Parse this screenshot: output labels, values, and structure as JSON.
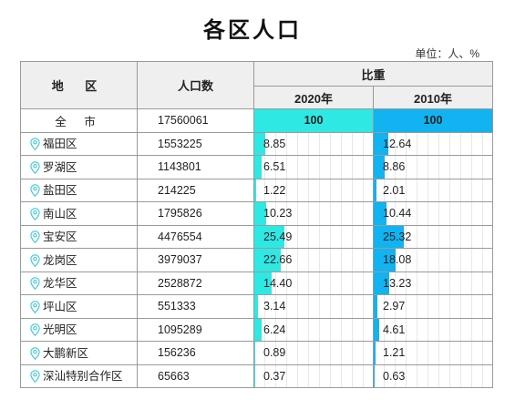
{
  "title": "各区人口",
  "unit": "单位：人、%",
  "headers": {
    "region": "地  区",
    "population": "人口数",
    "share": "比重",
    "y2020": "2020年",
    "y2010": "2010年"
  },
  "colors": {
    "y2020": "#2ee8e4",
    "y2010": "#11b3f0",
    "pin": "#38c7d8"
  },
  "icon": "location-pin-icon",
  "total": {
    "region": "全  市",
    "population": "17560061",
    "share_2020": "100",
    "share_2010": "100"
  },
  "rows": [
    {
      "region": "福田区",
      "population": "1553225",
      "share_2020": "8.85",
      "share_2010": "12.64"
    },
    {
      "region": "罗湖区",
      "population": "1143801",
      "share_2020": "6.51",
      "share_2010": "8.86"
    },
    {
      "region": "盐田区",
      "population": "214225",
      "share_2020": "1.22",
      "share_2010": "2.01"
    },
    {
      "region": "南山区",
      "population": "1795826",
      "share_2020": "10.23",
      "share_2010": "10.44"
    },
    {
      "region": "宝安区",
      "population": "4476554",
      "share_2020": "25.49",
      "share_2010": "25.32"
    },
    {
      "region": "龙岗区",
      "population": "3979037",
      "share_2020": "22.66",
      "share_2010": "18.08"
    },
    {
      "region": "龙华区",
      "population": "2528872",
      "share_2020": "14.40",
      "share_2010": "13.23"
    },
    {
      "region": "坪山区",
      "population": "551333",
      "share_2020": "3.14",
      "share_2010": "2.97"
    },
    {
      "region": "光明区",
      "population": "1095289",
      "share_2020": "6.24",
      "share_2010": "4.61"
    },
    {
      "region": "大鹏新区",
      "population": "156236",
      "share_2020": "0.89",
      "share_2010": "1.21"
    },
    {
      "region": "深汕特别合作区",
      "population": "65663",
      "share_2020": "0.37",
      "share_2010": "0.63"
    }
  ]
}
